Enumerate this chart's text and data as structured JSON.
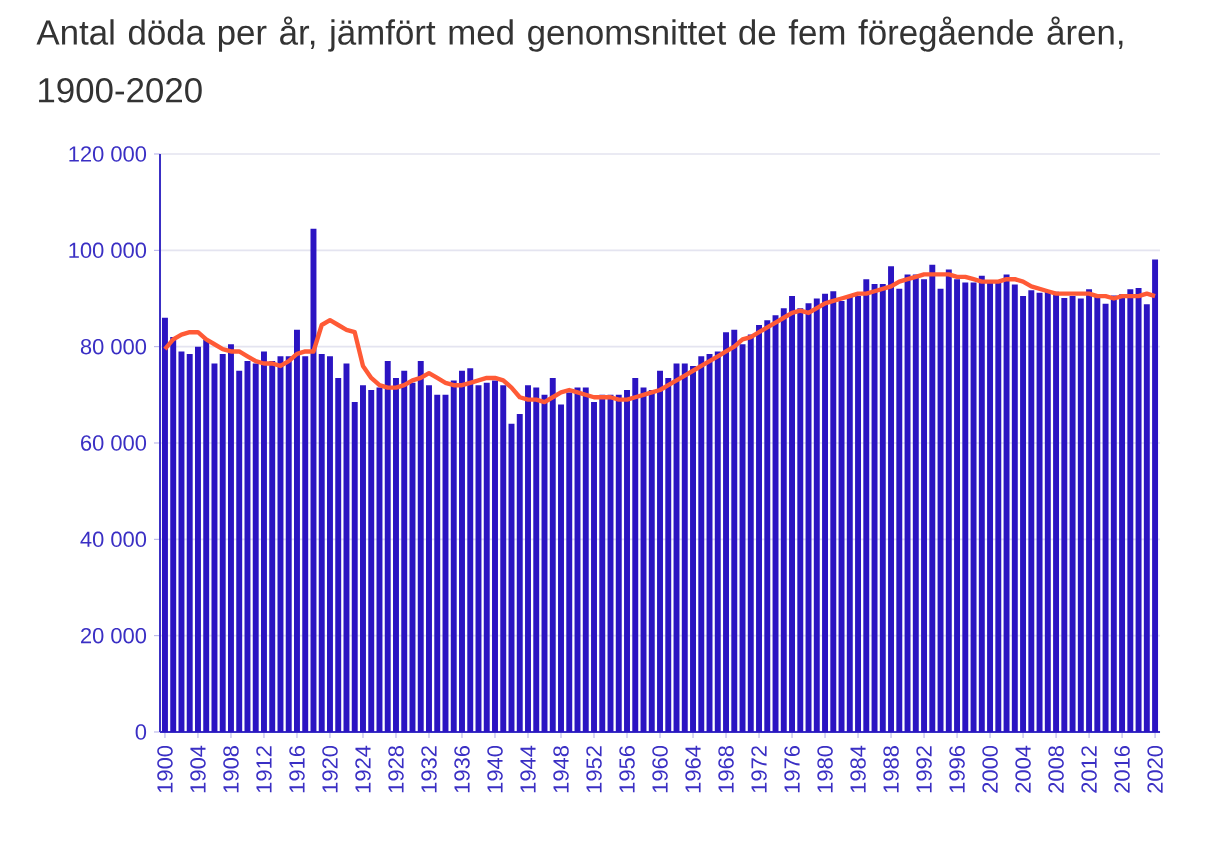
{
  "chart_data": {
    "type": "bar",
    "title": "Antal döda per år, jämfört med genomsnittet de fem föregående åren, 1900-2020",
    "categories": [
      "1900",
      null,
      null,
      null,
      "1904",
      null,
      null,
      null,
      "1908",
      null,
      null,
      null,
      "1912",
      null,
      null,
      null,
      "1916",
      null,
      null,
      null,
      "1920",
      null,
      null,
      null,
      "1924",
      null,
      null,
      null,
      "1928",
      null,
      null,
      null,
      "1932",
      null,
      null,
      null,
      "1936",
      null,
      null,
      null,
      "1940",
      null,
      null,
      null,
      "1944",
      null,
      null,
      null,
      "1948",
      null,
      null,
      null,
      "1952",
      null,
      null,
      null,
      "1956",
      null,
      null,
      null,
      "1960",
      null,
      null,
      null,
      "1964",
      null,
      null,
      null,
      "1968",
      null,
      null,
      null,
      "1972",
      null,
      null,
      null,
      "1976",
      null,
      null,
      null,
      "1980",
      null,
      null,
      null,
      "1984",
      null,
      null,
      null,
      "1988",
      null,
      null,
      null,
      "1992",
      null,
      null,
      null,
      "1996",
      null,
      null,
      null,
      "2000",
      null,
      null,
      null,
      "2004",
      null,
      null,
      null,
      "2008",
      null,
      null,
      null,
      "2012",
      null,
      null,
      null,
      "2016",
      null,
      null,
      null,
      "2020"
    ],
    "series": [
      {
        "color": "#2b14c2",
        "values": [
          86000,
          82000,
          79000,
          78500,
          80000,
          81500,
          76500,
          78500,
          80500,
          75000,
          77000,
          76500,
          79000,
          77000,
          78000,
          78000,
          83500,
          78000,
          104500,
          78500,
          78000,
          73500,
          76500,
          68500,
          72000,
          71000,
          71500,
          77000,
          73500,
          75000,
          72500,
          77000,
          72000,
          70000,
          70000,
          73000,
          75000,
          75500,
          72000,
          72500,
          73000,
          72000,
          64000,
          66000,
          72000,
          71500,
          70000,
          73500,
          68000,
          70500,
          71500,
          71500,
          68500,
          70000,
          70000,
          70000,
          71000,
          73500,
          71500,
          71000,
          75000,
          73500,
          76500,
          76500,
          76000,
          78000,
          78500,
          79000,
          83000,
          83500,
          80500,
          82500,
          84500,
          85500,
          86500,
          88000,
          90500,
          88000,
          89000,
          90000,
          91000,
          91500,
          89500,
          90500,
          90500,
          94000,
          93000,
          93000,
          96700,
          92000,
          95000,
          95000,
          94000,
          97000,
          92000,
          96000,
          94000,
          93300,
          93300,
          94700,
          93300,
          93800,
          95000,
          92900,
          90500,
          91700,
          91200,
          91700,
          91400,
          90100,
          90500,
          90000,
          91900,
          90400,
          88900,
          90600,
          90900,
          91900,
          92200,
          88800,
          98100
        ]
      },
      {
        "type": "line",
        "color": "#ff5a36",
        "values": [
          79500,
          81500,
          82500,
          83000,
          83000,
          81500,
          80500,
          79500,
          79000,
          79000,
          78000,
          77000,
          76500,
          76500,
          76000,
          77000,
          78500,
          79000,
          79000,
          84500,
          85500,
          84500,
          83500,
          83000,
          76000,
          73500,
          72000,
          71500,
          71500,
          72000,
          73000,
          73500,
          74500,
          73500,
          72500,
          72000,
          72000,
          72500,
          73000,
          73500,
          73500,
          73000,
          71500,
          69500,
          69000,
          69000,
          68500,
          69500,
          70500,
          71000,
          70500,
          70000,
          69500,
          69500,
          69500,
          69000,
          69000,
          69500,
          70000,
          70500,
          71000,
          72000,
          73000,
          74000,
          75000,
          76000,
          77000,
          78000,
          79000,
          80000,
          81500,
          82000,
          83000,
          84000,
          85000,
          86000,
          87000,
          87500,
          87000,
          88000,
          89000,
          89500,
          90000,
          90500,
          91000,
          91000,
          91500,
          92000,
          92500,
          93500,
          94000,
          94500,
          95000,
          95000,
          95000,
          95000,
          94500,
          94500,
          94000,
          93500,
          93500,
          93500,
          94000,
          94000,
          93500,
          92500,
          92000,
          91500,
          91000,
          91000,
          91000,
          91000,
          91000,
          90500,
          90500,
          90000,
          90500,
          90500,
          90500,
          91000,
          90500
        ]
      }
    ],
    "ylim": [
      0,
      120000
    ],
    "yticks": [
      {
        "value": 0,
        "label": "0"
      },
      {
        "value": 20000,
        "label": "20 000"
      },
      {
        "value": 40000,
        "label": "40 000"
      },
      {
        "value": 60000,
        "label": "60 000"
      },
      {
        "value": 80000,
        "label": "80 000"
      },
      {
        "value": 100000,
        "label": "100 000"
      },
      {
        "value": 120000,
        "label": "120 000"
      }
    ],
    "grid": "y"
  }
}
